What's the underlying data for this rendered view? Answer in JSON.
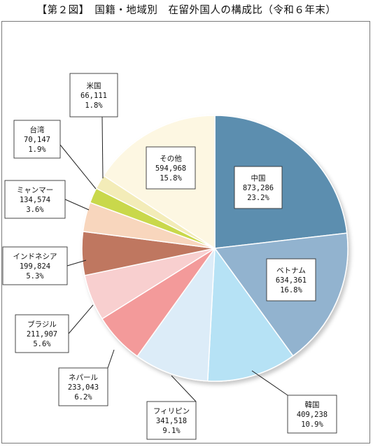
{
  "title": "【第２図】　国籍・地域別　在留外国人の構成比（令和６年末）",
  "chart_data": {
    "type": "pie",
    "title": "【第２図】　国籍・地域別　在留外国人の構成比（令和６年末）",
    "start_angle_deg": 0,
    "direction": "clockwise",
    "slices": [
      {
        "name": "中国",
        "value_text": "873,286",
        "percent_text": "23.2%",
        "value": 873286,
        "percent": 23.2,
        "color": "#5b8eaf"
      },
      {
        "name": "ベトナム",
        "value_text": "634,361",
        "percent_text": "16.8%",
        "value": 634361,
        "percent": 16.8,
        "color": "#92b3cf"
      },
      {
        "name": "韓国",
        "value_text": "409,238",
        "percent_text": "10.9%",
        "value": 409238,
        "percent": 10.9,
        "color": "#b6e2f5"
      },
      {
        "name": "フィリピン",
        "value_text": "341,518",
        "percent_text": "9.1%",
        "value": 341518,
        "percent": 9.1,
        "color": "#dcecf8"
      },
      {
        "name": "ネパール",
        "value_text": "233,043",
        "percent_text": "6.2%",
        "value": 233043,
        "percent": 6.2,
        "color": "#f39a9a"
      },
      {
        "name": "ブラジル",
        "value_text": "211,907",
        "percent_text": "5.6%",
        "value": 211907,
        "percent": 5.6,
        "color": "#f8cfcf"
      },
      {
        "name": "インドネシア",
        "value_text": "199,824",
        "percent_text": "5.3%",
        "value": 199824,
        "percent": 5.3,
        "color": "#bf7761"
      },
      {
        "name": "ミャンマー",
        "value_text": "134,574",
        "percent_text": "3.6%",
        "value": 134574,
        "percent": 3.6,
        "color": "#f8d6bd"
      },
      {
        "name": "台湾",
        "value_text": "70,147",
        "percent_text": "1.9%",
        "value": 70147,
        "percent": 1.9,
        "color": "#c9d84c"
      },
      {
        "name": "米国",
        "value_text": "66,111",
        "percent_text": "1.8%",
        "value": 66111,
        "percent": 1.8,
        "color": "#f3ecb8"
      },
      {
        "name": "その他",
        "value_text": "594,968",
        "percent_text": "15.8%",
        "value": 594968,
        "percent": 15.8,
        "color": "#fdf7e2"
      }
    ]
  }
}
